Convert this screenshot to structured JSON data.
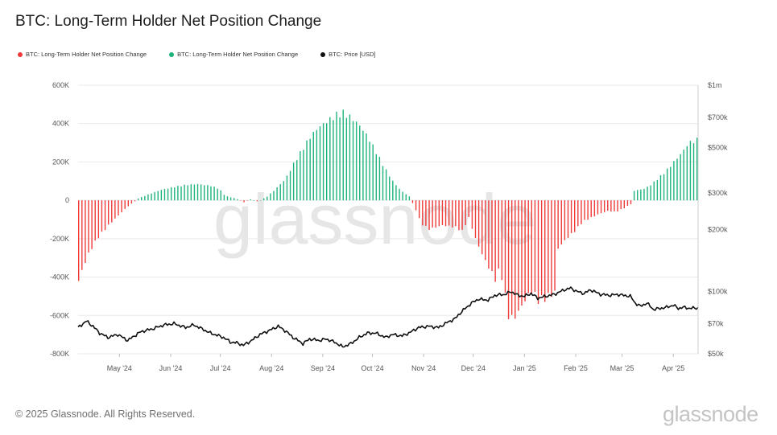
{
  "title": "BTC: Long-Term Holder Net Position Change",
  "copyright": "© 2025 Glassnode. All Rights Reserved.",
  "brand": "glassnode",
  "watermark": "glassnode",
  "colors": {
    "positive": "#1db37a",
    "negative": "#ef3a3a",
    "price": "#111111",
    "grid": "#e9e9e9"
  },
  "chart_data": {
    "type": "bar",
    "legend": [
      {
        "label": "BTC: Long-Term Holder Net Position Change",
        "color": "#ef3a3a"
      },
      {
        "label": "BTC: Long-Term Holder Net Position Change",
        "color": "#1db37a"
      },
      {
        "label": "BTC: Price [USD]",
        "color": "#111111"
      }
    ],
    "legend_position": "top-left",
    "x_ticks": [
      "May '24",
      "Jun '24",
      "Jul '24",
      "Aug '24",
      "Sep '24",
      "Oct '24",
      "Nov '24",
      "Dec '24",
      "Jan '25",
      "Feb '25",
      "Mar '25",
      "Apr '25"
    ],
    "y_left": {
      "ticks": [
        "600K",
        "400K",
        "200K",
        "0",
        "-200K",
        "-400K",
        "-600K",
        "-800K"
      ],
      "range": [
        -800000,
        600000
      ]
    },
    "y_right": {
      "ticks": [
        "$1m",
        "$700k",
        "$500k",
        "$300k",
        "$200k",
        "$100k",
        "$70k",
        "$50k"
      ],
      "scale": "log",
      "range": [
        50000,
        1000000
      ]
    },
    "grid": true,
    "series": [
      {
        "kind": "bar",
        "x_start": "2024-04-06",
        "x_end": "2025-04-06",
        "keyframes_day_value": [
          [
            0,
            -420000
          ],
          [
            3,
            -340000
          ],
          [
            7,
            -260000
          ],
          [
            12,
            -190000
          ],
          [
            18,
            -130000
          ],
          [
            25,
            -70000
          ],
          [
            30,
            -30000
          ],
          [
            34,
            -5000
          ],
          [
            36,
            10000
          ],
          [
            42,
            30000
          ],
          [
            50,
            55000
          ],
          [
            58,
            70000
          ],
          [
            65,
            80000
          ],
          [
            72,
            85000
          ],
          [
            80,
            75000
          ],
          [
            85,
            60000
          ],
          [
            88,
            30000
          ],
          [
            90,
            20000
          ],
          [
            95,
            10000
          ],
          [
            100,
            -10000
          ],
          [
            104,
            5000
          ],
          [
            108,
            -5000
          ],
          [
            110,
            0
          ],
          [
            114,
            20000
          ],
          [
            118,
            50000
          ],
          [
            125,
            110000
          ],
          [
            130,
            190000
          ],
          [
            135,
            260000
          ],
          [
            140,
            330000
          ],
          [
            145,
            380000
          ],
          [
            150,
            410000
          ],
          [
            156,
            445000
          ],
          [
            160,
            455000
          ],
          [
            165,
            430000
          ],
          [
            170,
            390000
          ],
          [
            175,
            330000
          ],
          [
            180,
            250000
          ],
          [
            185,
            170000
          ],
          [
            190,
            100000
          ],
          [
            195,
            50000
          ],
          [
            200,
            20000
          ],
          [
            204,
            -50000
          ],
          [
            207,
            -120000
          ],
          [
            212,
            -150000
          ],
          [
            220,
            -130000
          ],
          [
            228,
            -140000
          ],
          [
            232,
            -160000
          ],
          [
            236,
            -90000
          ],
          [
            240,
            -200000
          ],
          [
            245,
            -300000
          ],
          [
            250,
            -380000
          ],
          [
            252,
            -410000
          ],
          [
            255,
            -350000
          ],
          [
            257,
            -450000
          ],
          [
            260,
            -600000
          ],
          [
            263,
            -620000
          ],
          [
            266,
            -580000
          ],
          [
            270,
            -520000
          ],
          [
            274,
            -470000
          ],
          [
            278,
            -520000
          ],
          [
            282,
            -510000
          ],
          [
            286,
            -490000
          ],
          [
            288,
            -480000
          ],
          [
            290,
            -250000
          ],
          [
            295,
            -200000
          ],
          [
            300,
            -160000
          ],
          [
            305,
            -110000
          ],
          [
            310,
            -90000
          ],
          [
            315,
            -70000
          ],
          [
            320,
            -55000
          ],
          [
            325,
            -60000
          ],
          [
            330,
            -40000
          ],
          [
            334,
            -20000
          ],
          [
            336,
            50000
          ],
          [
            342,
            60000
          ],
          [
            346,
            80000
          ],
          [
            350,
            110000
          ],
          [
            355,
            150000
          ],
          [
            360,
            200000
          ],
          [
            365,
            250000
          ],
          [
            369,
            300000
          ],
          [
            373,
            310000
          ],
          [
            375,
            320000
          ]
        ]
      },
      {
        "kind": "line",
        "name": "BTC: Price [USD]",
        "keyframes_day_price": [
          [
            0,
            67000
          ],
          [
            5,
            72000
          ],
          [
            9,
            68000
          ],
          [
            13,
            63000
          ],
          [
            18,
            60000
          ],
          [
            24,
            62000
          ],
          [
            30,
            58000
          ],
          [
            38,
            64000
          ],
          [
            45,
            66000
          ],
          [
            52,
            69000
          ],
          [
            58,
            70000
          ],
          [
            65,
            67000
          ],
          [
            70,
            69000
          ],
          [
            75,
            66000
          ],
          [
            80,
            63000
          ],
          [
            88,
            60000
          ],
          [
            92,
            57000
          ],
          [
            96,
            56500
          ],
          [
            100,
            55000
          ],
          [
            105,
            58000
          ],
          [
            110,
            62000
          ],
          [
            116,
            65000
          ],
          [
            121,
            68000
          ],
          [
            126,
            64000
          ],
          [
            130,
            60000
          ],
          [
            136,
            56000
          ],
          [
            140,
            59000
          ],
          [
            146,
            58000
          ],
          [
            150,
            59000
          ],
          [
            155,
            57000
          ],
          [
            160,
            54000
          ],
          [
            165,
            56000
          ],
          [
            170,
            60000
          ],
          [
            175,
            63000
          ],
          [
            180,
            63000
          ],
          [
            186,
            60000
          ],
          [
            190,
            62000
          ],
          [
            196,
            61000
          ],
          [
            200,
            63000
          ],
          [
            206,
            67000
          ],
          [
            212,
            68000
          ],
          [
            218,
            67000
          ],
          [
            222,
            70000
          ],
          [
            228,
            74000
          ],
          [
            232,
            80000
          ],
          [
            238,
            88000
          ],
          [
            242,
            92000
          ],
          [
            248,
            91000
          ],
          [
            252,
            96000
          ],
          [
            258,
            97000
          ],
          [
            262,
            100000
          ],
          [
            266,
            96000
          ],
          [
            270,
            95000
          ],
          [
            274,
            98000
          ],
          [
            278,
            93000
          ],
          [
            283,
            95000
          ],
          [
            288,
            97000
          ],
          [
            294,
            102000
          ],
          [
            298,
            104000
          ],
          [
            302,
            100000
          ],
          [
            306,
            98000
          ],
          [
            310,
            102000
          ],
          [
            316,
            97000
          ],
          [
            322,
            96000
          ],
          [
            326,
            97000
          ],
          [
            330,
            96000
          ],
          [
            334,
            95000
          ],
          [
            337,
            88000
          ],
          [
            340,
            85000
          ],
          [
            344,
            88000
          ],
          [
            348,
            82000
          ],
          [
            352,
            83000
          ],
          [
            356,
            84000
          ],
          [
            360,
            86000
          ],
          [
            363,
            83000
          ],
          [
            366,
            84000
          ],
          [
            370,
            83000
          ],
          [
            375,
            83500
          ]
        ]
      }
    ]
  }
}
